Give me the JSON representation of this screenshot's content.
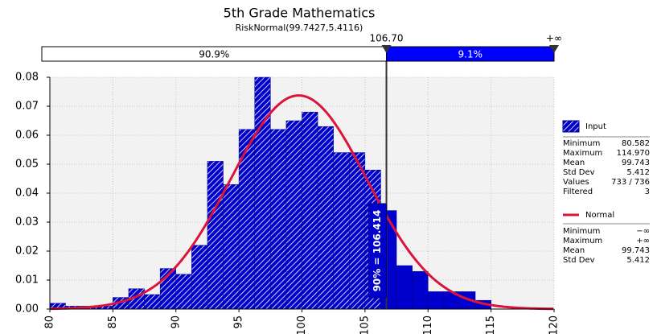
{
  "chart_data": {
    "type": "histogram",
    "title": "5th Grade Mathematics",
    "subtitle": "RiskNormal(99.7427,5.4116)",
    "color": "#0000cc",
    "bins": [
      80,
      81.25,
      82.5,
      83.75,
      85,
      86.25,
      87.5,
      88.75,
      90,
      91.25,
      92.5,
      93.75,
      95,
      96.25,
      97.5,
      98.75,
      100,
      101.25,
      102.5,
      103.75,
      105,
      106.25,
      107.5,
      108.75,
      110,
      111.25,
      112.5,
      113.75,
      115
    ],
    "values": [
      0.002,
      0.001,
      0.001,
      0.001,
      0.004,
      0.007,
      0.005,
      0.014,
      0.012,
      0.022,
      0.051,
      0.043,
      0.062,
      0.08,
      0.062,
      0.065,
      0.068,
      0.063,
      0.054,
      0.054,
      0.048,
      0.034,
      0.015,
      0.013,
      0.006,
      0.006,
      0.006,
      0.003
    ],
    "normal": {
      "name": "Normal",
      "color": "#dc143c",
      "mean": 99.7427,
      "std": 5.4116
    },
    "xlim": [
      80,
      120
    ],
    "xticks": [
      80,
      85,
      90,
      95,
      100,
      105,
      110,
      115,
      120
    ],
    "ylim": [
      0,
      0.08
    ],
    "yticks": [
      {
        "value": 0,
        "label": "0.00"
      },
      {
        "value": 0.01,
        "label": "0.01"
      },
      {
        "value": 0.02,
        "label": "0.02"
      },
      {
        "value": 0.03,
        "label": "0.03"
      },
      {
        "value": 0.04,
        "label": "0.04"
      },
      {
        "value": 0.05,
        "label": "0.05"
      },
      {
        "value": 0.06,
        "label": "0.06"
      },
      {
        "value": 0.07,
        "label": "0.07"
      },
      {
        "value": 0.08,
        "label": "0.08"
      }
    ],
    "grid": true,
    "delimiter": {
      "value": 106.7,
      "label": "106.70",
      "right_label": "+∞",
      "values": [
        90.9,
        9.1
      ],
      "value_labels": [
        "90.9%",
        "9.1%"
      ]
    },
    "annotation": "90% = 106.414",
    "legend": {
      "input_name": "Input",
      "input_stats": [
        [
          "Minimum",
          "80.582"
        ],
        [
          "Maximum",
          "114.970"
        ],
        [
          "Mean",
          "99.743"
        ],
        [
          "Std Dev",
          "5.412"
        ],
        [
          "Values",
          "733 / 736"
        ],
        [
          "Filtered",
          "3"
        ]
      ],
      "normal_stats": [
        [
          "Minimum",
          "−∞"
        ],
        [
          "Maximum",
          "+∞"
        ],
        [
          "Mean",
          "99.743"
        ],
        [
          "Std Dev",
          "5.412"
        ]
      ]
    }
  }
}
